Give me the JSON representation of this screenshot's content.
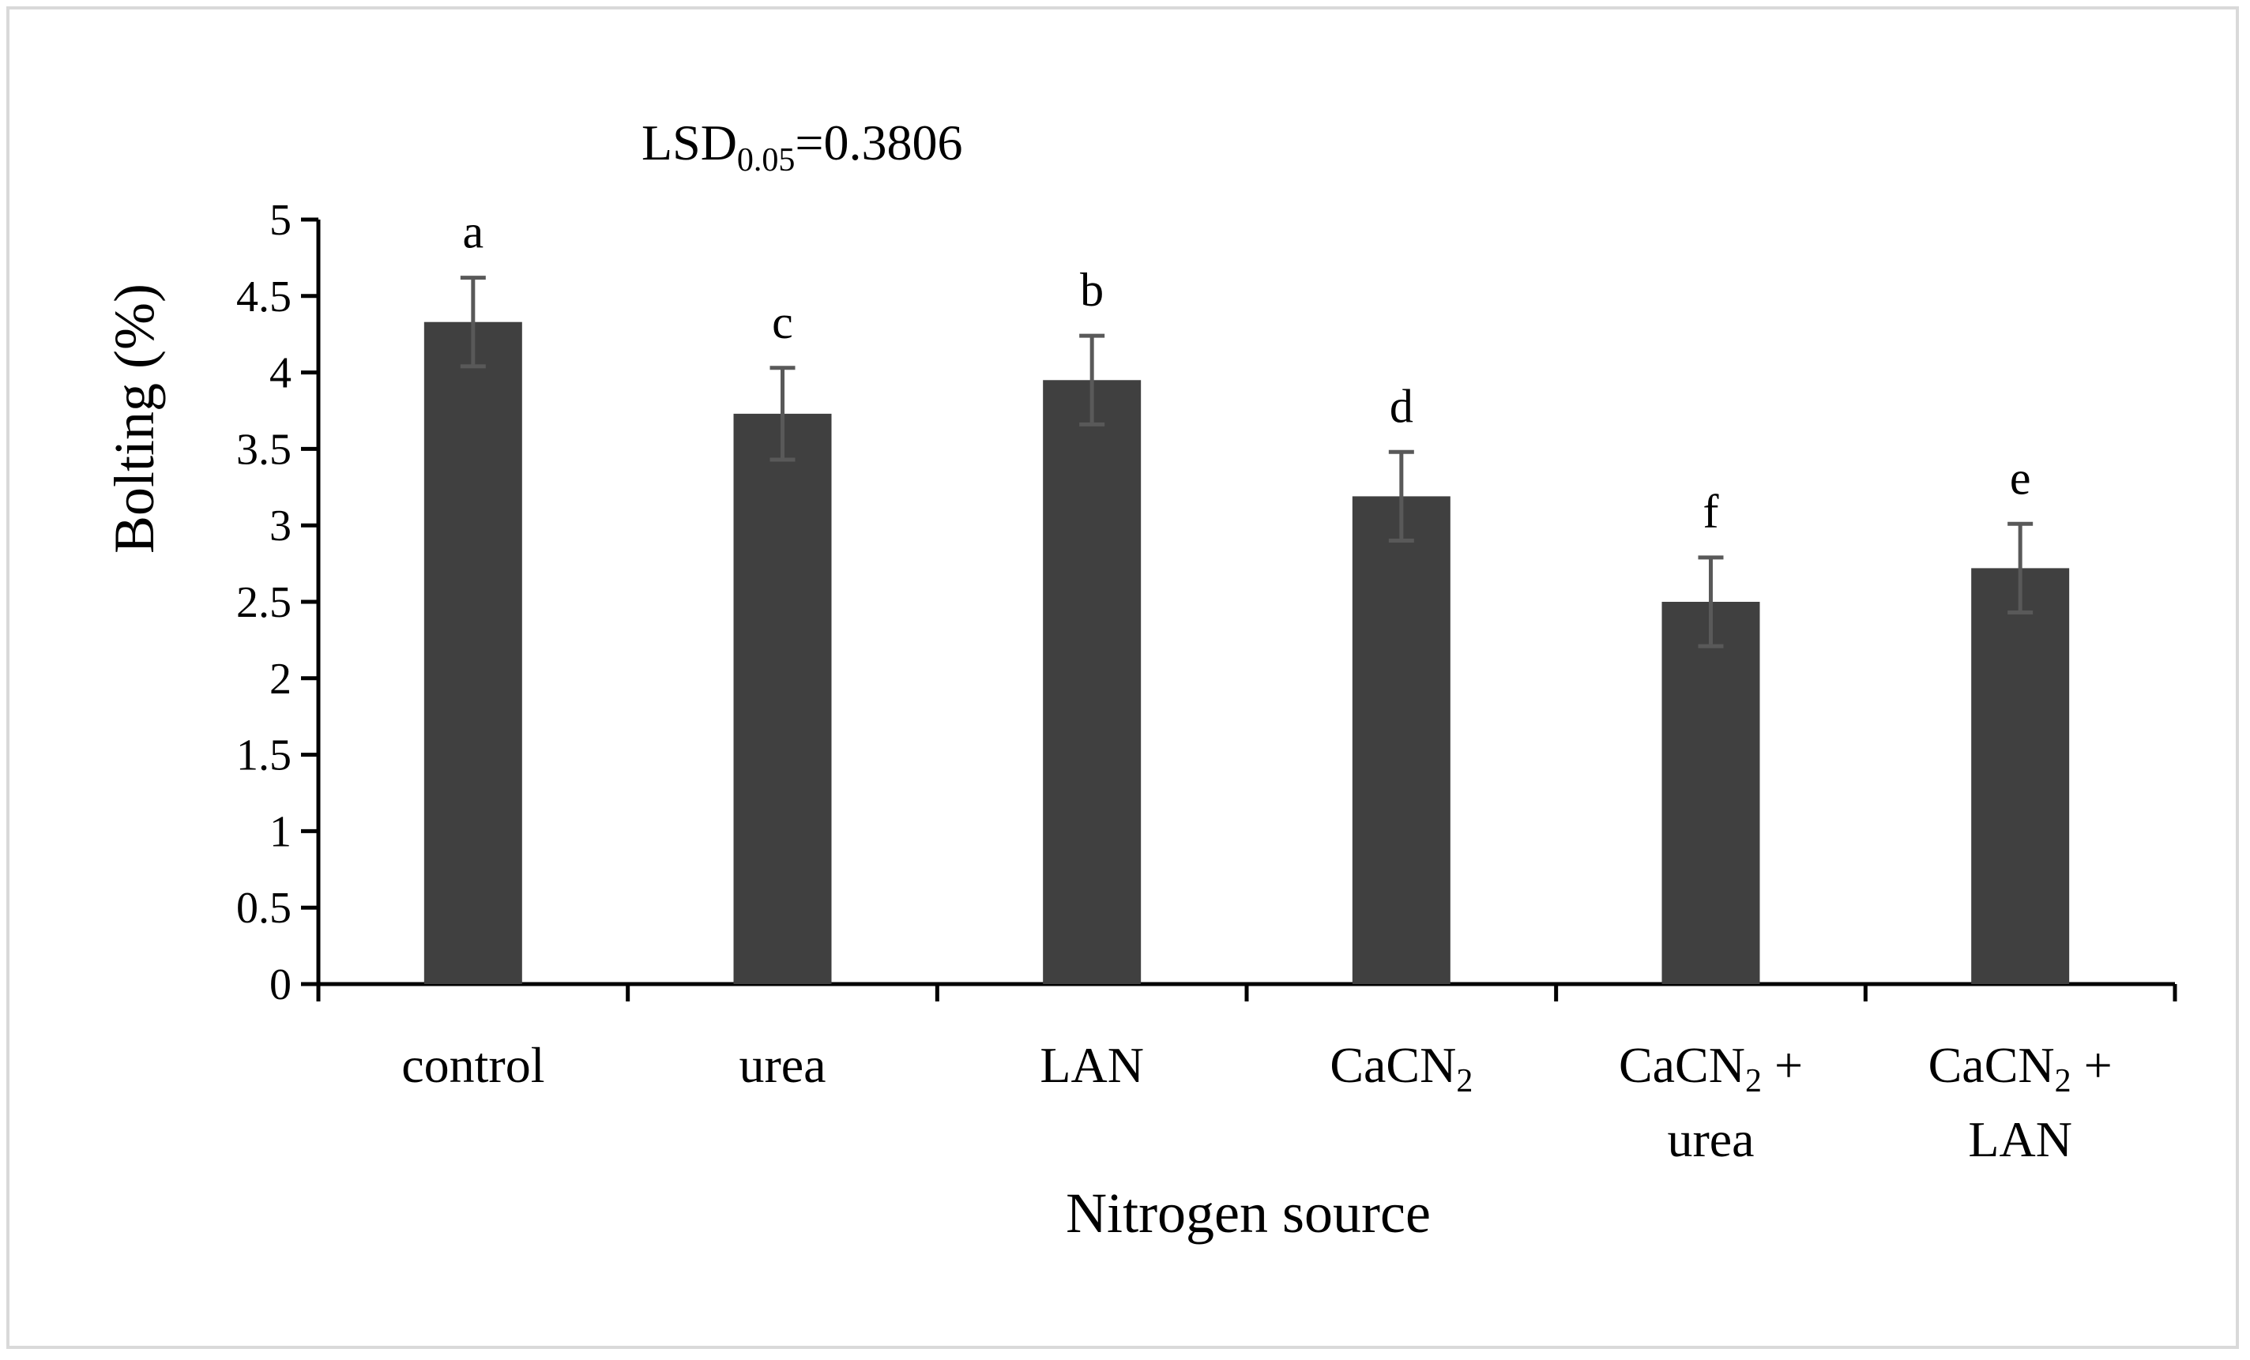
{
  "chart_data": {
    "type": "bar",
    "title": "",
    "annotation": {
      "prefix": "LSD",
      "subscript": "0.05",
      "suffix": "=0.3806"
    },
    "xlabel": "Nitrogen source",
    "ylabel": "Bolting (%)",
    "ylim": [
      0,
      5
    ],
    "yticks": [
      "0",
      "0.5",
      "1",
      "1.5",
      "2",
      "2.5",
      "3",
      "3.5",
      "4",
      "4.5",
      "5"
    ],
    "ytick_values": [
      0,
      0.5,
      1,
      1.5,
      2,
      2.5,
      3,
      3.5,
      4,
      4.5,
      5
    ],
    "categories": [
      {
        "lines": [
          {
            "text": "control"
          }
        ]
      },
      {
        "lines": [
          {
            "text": "urea"
          }
        ]
      },
      {
        "lines": [
          {
            "text": "LAN"
          }
        ]
      },
      {
        "lines": [
          {
            "text": "CaCN",
            "sub": "2"
          }
        ]
      },
      {
        "lines": [
          {
            "text": "CaCN",
            "sub": "2",
            "after": " +"
          },
          {
            "text": "urea"
          }
        ]
      },
      {
        "lines": [
          {
            "text": "CaCN",
            "sub": "2",
            "after": " +"
          },
          {
            "text": "LAN"
          }
        ]
      }
    ],
    "values": [
      4.33,
      3.73,
      3.95,
      3.19,
      2.5,
      2.72
    ],
    "errors": [
      0.29,
      0.3,
      0.29,
      0.29,
      0.29,
      0.29
    ],
    "significance_letters": [
      "a",
      "c",
      "b",
      "d",
      "f",
      "e"
    ],
    "grid": false,
    "colors": {
      "bar": "#404040",
      "error_bar": "#595959",
      "axis": "#000000",
      "frame": "#d9d9d9"
    }
  }
}
